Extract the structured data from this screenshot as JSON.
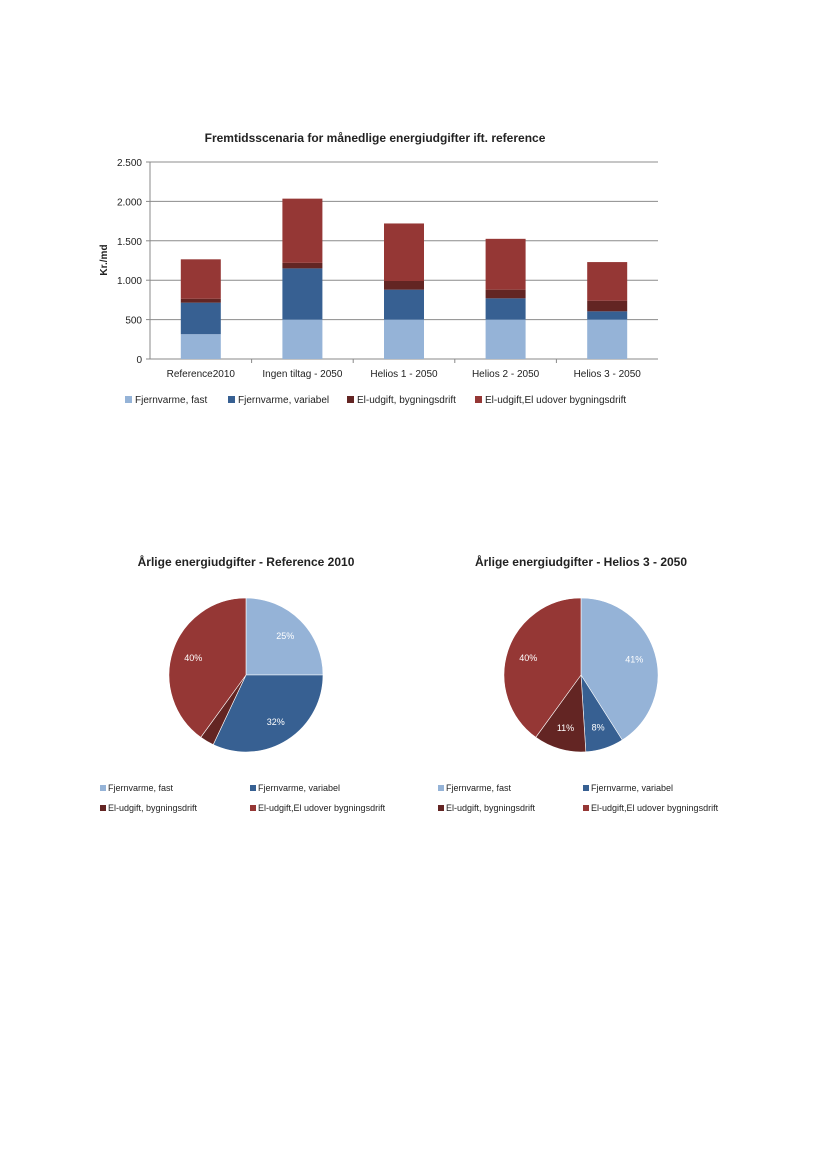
{
  "chart_data": [
    {
      "type": "bar",
      "stacked": true,
      "title": "Fremtidsscenaria for månedlige energiudgifter ift. reference",
      "xlabel": "",
      "ylabel": "Kr./md",
      "ylim": [
        0,
        2500
      ],
      "yticks": [
        0,
        500,
        1000,
        1500,
        2000,
        2500
      ],
      "ytick_labels": [
        "0",
        "500",
        "1.000",
        "1.500",
        "2.000",
        "2.500"
      ],
      "grid": true,
      "legend": "bottom",
      "categories": [
        "Reference2010",
        "Ingen tiltag - 2050",
        "Helios 1 - 2050",
        "Helios 2 - 2050",
        "Helios 3 - 2050"
      ],
      "series": [
        {
          "name": "Fjernvarme, fast",
          "color": "#95b3d7",
          "values": [
            315,
            500,
            500,
            500,
            500
          ]
        },
        {
          "name": "Fjernvarme, variabel",
          "color": "#376092",
          "values": [
            400,
            650,
            380,
            270,
            105
          ]
        },
        {
          "name": "El-udgift, bygningsdrift",
          "color": "#632523",
          "values": [
            50,
            70,
            110,
            110,
            135
          ]
        },
        {
          "name": "El-udgift,El udover bygningsdrift",
          "color": "#953735",
          "values": [
            500,
            815,
            730,
            645,
            490
          ]
        }
      ]
    },
    {
      "type": "pie",
      "title": "Årlige energiudgifter - Reference 2010",
      "legend": "bottom",
      "slices": [
        {
          "name": "Fjernvarme, fast",
          "color": "#95b3d7",
          "value": 25,
          "label": "25%"
        },
        {
          "name": "Fjernvarme, variabel",
          "color": "#376092",
          "value": 32,
          "label": "32%"
        },
        {
          "name": "El-udgift, bygningsdrift",
          "color": "#632523",
          "value": 3,
          "label": ""
        },
        {
          "name": "El-udgift,El udover bygningsdrift",
          "color": "#953735",
          "value": 40,
          "label": "40%"
        }
      ]
    },
    {
      "type": "pie",
      "title": "Årlige energiudgifter - Helios 3 -  2050",
      "legend": "bottom",
      "slices": [
        {
          "name": "Fjernvarme, fast",
          "color": "#95b3d7",
          "value": 41,
          "label": "41%"
        },
        {
          "name": "Fjernvarme, variabel",
          "color": "#376092",
          "value": 8,
          "label": "8%"
        },
        {
          "name": "El-udgift, bygningsdrift",
          "color": "#632523",
          "value": 11,
          "label": "11%"
        },
        {
          "name": "El-udgift,El udover bygningsdrift",
          "color": "#953735",
          "value": 40,
          "label": "40%"
        }
      ]
    }
  ]
}
